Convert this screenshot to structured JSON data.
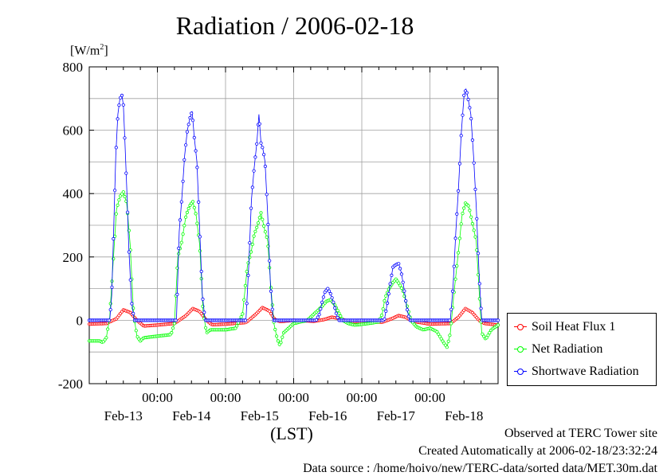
{
  "header": {
    "title": "Radiation / 2006-02-18",
    "unit_base": "[W/m",
    "unit_sup": "2",
    "unit_close": "]"
  },
  "axis": {
    "xlabel": "(LST)",
    "time_label": "00:00"
  },
  "footer": {
    "line1": "Observed at TERC Tower site",
    "line2": "Created Automatically at 2006-02-18/23:32:24",
    "line3": "Data source : /home/hoivo/new/TERC-data/sorted  data/MET.30m.dat"
  },
  "chart_data": {
    "type": "line",
    "title": "Radiation / 2006-02-18",
    "xlabel": "(LST)",
    "ylabel": "[W/m2]",
    "ylim": [
      -200,
      800
    ],
    "yticks": [
      -200,
      0,
      200,
      400,
      600,
      800
    ],
    "xlim": [
      0,
      6
    ],
    "xtick_values": [
      1,
      2,
      3,
      4,
      5
    ],
    "xtick_labels": [
      "00:00",
      "00:00",
      "00:00",
      "00:00",
      "00:00"
    ],
    "day_label_values": [
      0.5,
      1.5,
      2.5,
      3.5,
      4.5,
      5.5
    ],
    "day_labels": [
      "Feb-13",
      "Feb-14",
      "Feb-15",
      "Feb-16",
      "Feb-17",
      "Feb-18"
    ],
    "x_unit": "days from 2006-02-13 00:00 LST",
    "grid": true,
    "legend_position": "bottom-right, outside",
    "series": [
      {
        "name": "Soil Heat Flux 1",
        "color": "#ff0000",
        "x": [
          0.0,
          0.25,
          0.4,
          0.5,
          0.6,
          0.7,
          0.8,
          1.0,
          1.25,
          1.42,
          1.52,
          1.62,
          1.72,
          1.8,
          2.0,
          2.3,
          2.44,
          2.54,
          2.64,
          2.72,
          2.8,
          3.0,
          3.3,
          3.44,
          3.56,
          3.66,
          3.76,
          3.85,
          4.0,
          4.3,
          4.44,
          4.54,
          4.64,
          4.72,
          4.8,
          5.0,
          5.3,
          5.42,
          5.52,
          5.62,
          5.72,
          5.8,
          6.0
        ],
        "y": [
          -12,
          -10,
          5,
          33,
          25,
          0,
          -18,
          -15,
          -10,
          15,
          37,
          28,
          0,
          -14,
          -12,
          -7,
          18,
          40,
          30,
          3,
          -4,
          0,
          -3,
          2,
          10,
          6,
          0,
          -5,
          -5,
          -6,
          5,
          15,
          10,
          0,
          -5,
          -12,
          -10,
          10,
          37,
          25,
          0,
          -10,
          -15
        ]
      },
      {
        "name": "Net Radiation",
        "color": "#00ff00",
        "x": [
          0.0,
          0.15,
          0.2,
          0.25,
          0.3,
          0.35,
          0.4,
          0.45,
          0.5,
          0.55,
          0.6,
          0.65,
          0.7,
          0.75,
          0.8,
          1.0,
          1.2,
          1.25,
          1.3,
          1.35,
          1.42,
          1.47,
          1.52,
          1.57,
          1.62,
          1.67,
          1.72,
          1.78,
          1.85,
          2.0,
          2.15,
          2.25,
          2.32,
          2.38,
          2.42,
          2.47,
          2.52,
          2.57,
          2.62,
          2.66,
          2.71,
          2.76,
          2.8,
          2.85,
          3.0,
          3.2,
          3.3,
          3.35,
          3.42,
          3.48,
          3.54,
          3.6,
          3.66,
          3.72,
          3.8,
          3.9,
          4.1,
          4.25,
          4.3,
          4.34,
          4.4,
          4.46,
          4.5,
          4.55,
          4.6,
          4.66,
          4.72,
          4.8,
          4.9,
          5.0,
          5.1,
          5.2,
          5.25,
          5.3,
          5.35,
          5.42,
          5.47,
          5.52,
          5.57,
          5.62,
          5.68,
          5.72,
          5.76,
          5.82,
          5.9,
          6.0
        ],
        "y": [
          -65,
          -65,
          -70,
          -55,
          10,
          180,
          350,
          390,
          405,
          370,
          240,
          20,
          -50,
          -65,
          -55,
          -50,
          -45,
          -10,
          200,
          240,
          330,
          360,
          375,
          330,
          240,
          30,
          -40,
          -30,
          -30,
          -30,
          -25,
          20,
          170,
          220,
          270,
          300,
          340,
          290,
          250,
          120,
          -10,
          -60,
          -80,
          -40,
          -10,
          0,
          20,
          30,
          45,
          60,
          65,
          50,
          25,
          0,
          -10,
          -15,
          -10,
          -5,
          20,
          70,
          100,
          120,
          130,
          115,
          95,
          50,
          0,
          -20,
          -30,
          -25,
          -35,
          -70,
          -85,
          -40,
          80,
          220,
          330,
          370,
          360,
          310,
          250,
          100,
          -40,
          -60,
          -30,
          -15
        ]
      },
      {
        "name": "Shortwave Radiation",
        "color": "#0000ff",
        "x": [
          0.0,
          0.3,
          0.33,
          0.36,
          0.39,
          0.42,
          0.45,
          0.48,
          0.5,
          0.52,
          0.55,
          0.58,
          0.62,
          0.66,
          0.7,
          0.75,
          1.0,
          1.28,
          1.32,
          1.36,
          1.4,
          1.44,
          1.48,
          1.51,
          1.54,
          1.58,
          1.62,
          1.66,
          1.7,
          1.75,
          2.0,
          2.3,
          2.34,
          2.38,
          2.42,
          2.46,
          2.49,
          2.52,
          2.55,
          2.58,
          2.62,
          2.66,
          2.7,
          2.74,
          3.0,
          3.33,
          3.38,
          3.42,
          3.46,
          3.5,
          3.54,
          3.58,
          3.62,
          3.66,
          3.7,
          3.75,
          4.0,
          4.33,
          4.38,
          4.42,
          4.46,
          4.5,
          4.54,
          4.58,
          4.62,
          4.66,
          4.7,
          4.75,
          5.0,
          5.3,
          5.34,
          5.38,
          5.42,
          5.46,
          5.5,
          5.53,
          5.56,
          5.6,
          5.64,
          5.68,
          5.72,
          5.76,
          6.0
        ],
        "y": [
          0,
          0,
          80,
          300,
          520,
          650,
          700,
          710,
          680,
          580,
          420,
          230,
          60,
          0,
          0,
          0,
          0,
          0,
          280,
          390,
          520,
          600,
          640,
          660,
          580,
          500,
          290,
          80,
          0,
          0,
          0,
          0,
          170,
          380,
          480,
          560,
          650,
          560,
          540,
          500,
          330,
          110,
          0,
          0,
          0,
          0,
          20,
          60,
          90,
          100,
          85,
          60,
          25,
          0,
          0,
          0,
          0,
          0,
          60,
          120,
          170,
          175,
          180,
          150,
          100,
          40,
          0,
          0,
          0,
          0,
          110,
          280,
          420,
          590,
          710,
          730,
          700,
          650,
          520,
          360,
          150,
          0,
          0
        ]
      }
    ]
  }
}
